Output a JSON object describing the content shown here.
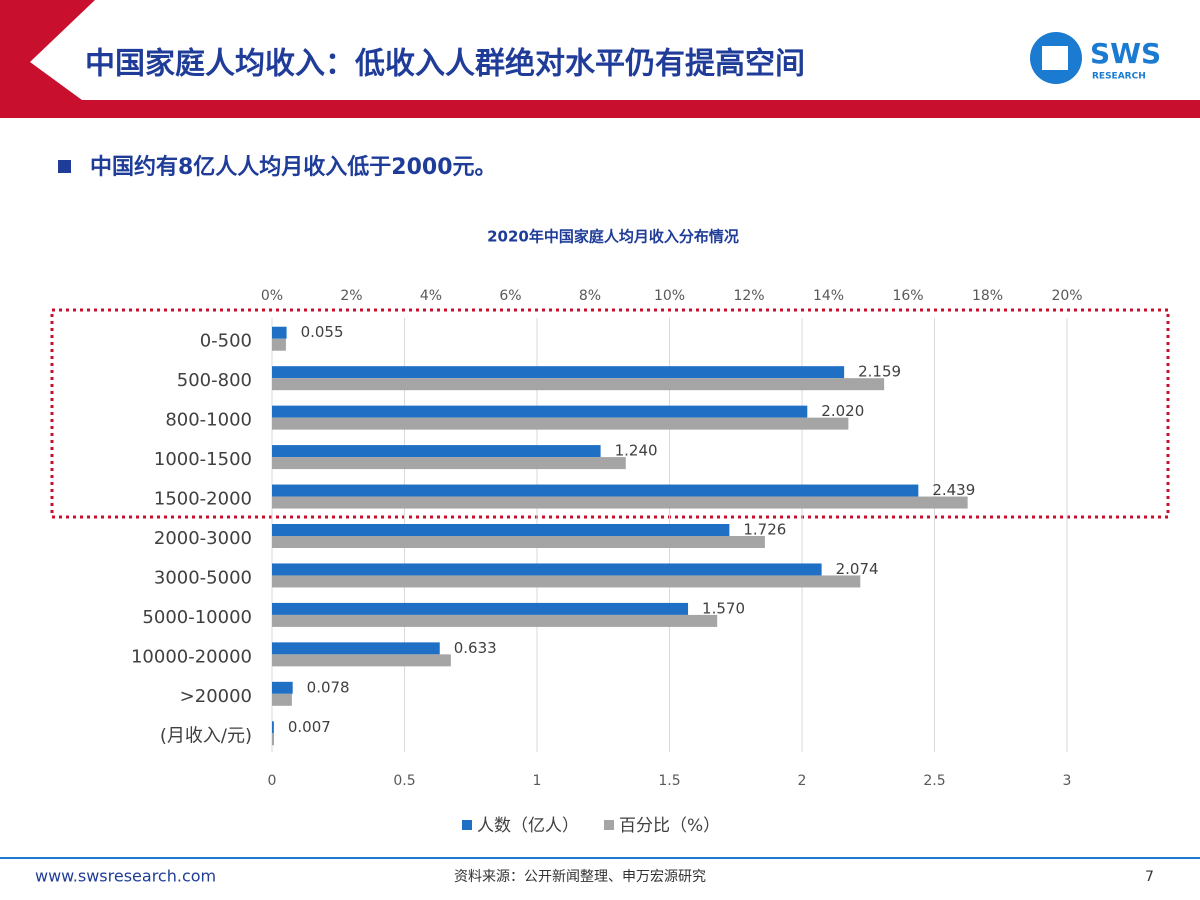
{
  "header": {
    "title": "中国家庭人均收入：低收入人群绝对水平仍有提高空间",
    "logo": "SWS",
    "logo_sub": "RESEARCH"
  },
  "bullet": "中国约有8亿人人均月收入低于2000元。",
  "chart_data": {
    "type": "bar",
    "orientation": "horizontal",
    "title": "2020年中国家庭人均月收入分布情况",
    "categories": [
      "0-500",
      "500-800",
      "800-1000",
      "1000-1500",
      "1500-2000",
      "2000-3000",
      "3000-5000",
      "5000-10000",
      "10000-20000",
      ">20000",
      "(月收入/元)"
    ],
    "series": [
      {
        "name": "人数（亿人）",
        "color": "#1f6fc5",
        "axis": "x",
        "values": [
          0.055,
          2.159,
          2.02,
          1.24,
          2.439,
          1.726,
          2.074,
          1.57,
          0.633,
          0.078,
          0.007
        ],
        "value_labels": [
          "0.055",
          "2.159",
          "2.020",
          "1.240",
          "2.439",
          "1.726",
          "2.074",
          "1.570",
          "0.633",
          "0.078",
          "0.007"
        ]
      },
      {
        "name": "百分比（%）",
        "color": "#a5a5a5",
        "axis": "x2",
        "values": [
          0.35,
          15.4,
          14.5,
          8.9,
          17.5,
          12.4,
          14.8,
          11.2,
          4.5,
          0.5,
          0.05
        ]
      }
    ],
    "xlim": [
      0,
      3
    ],
    "xticks": [
      0,
      0.5,
      1,
      1.5,
      2,
      2.5,
      3
    ],
    "x2lim": [
      0,
      20
    ],
    "x2ticks": [
      {
        "value": 0,
        "label": "0%"
      },
      {
        "value": 2,
        "label": "2%"
      },
      {
        "value": 4,
        "label": "4%"
      },
      {
        "value": 6,
        "label": "6%"
      },
      {
        "value": 8,
        "label": "8%"
      },
      {
        "value": 10,
        "label": "10%"
      },
      {
        "value": 12,
        "label": "12%"
      },
      {
        "value": 14,
        "label": "14%"
      },
      {
        "value": 16,
        "label": "16%"
      },
      {
        "value": 18,
        "label": "18%"
      },
      {
        "value": 20,
        "label": "20%"
      }
    ],
    "grid": true,
    "legend": "bottom"
  },
  "footer": {
    "website": "www.swsresearch.com",
    "source": "资料来源：公开新闻整理、申万宏源研究",
    "page": "7"
  }
}
